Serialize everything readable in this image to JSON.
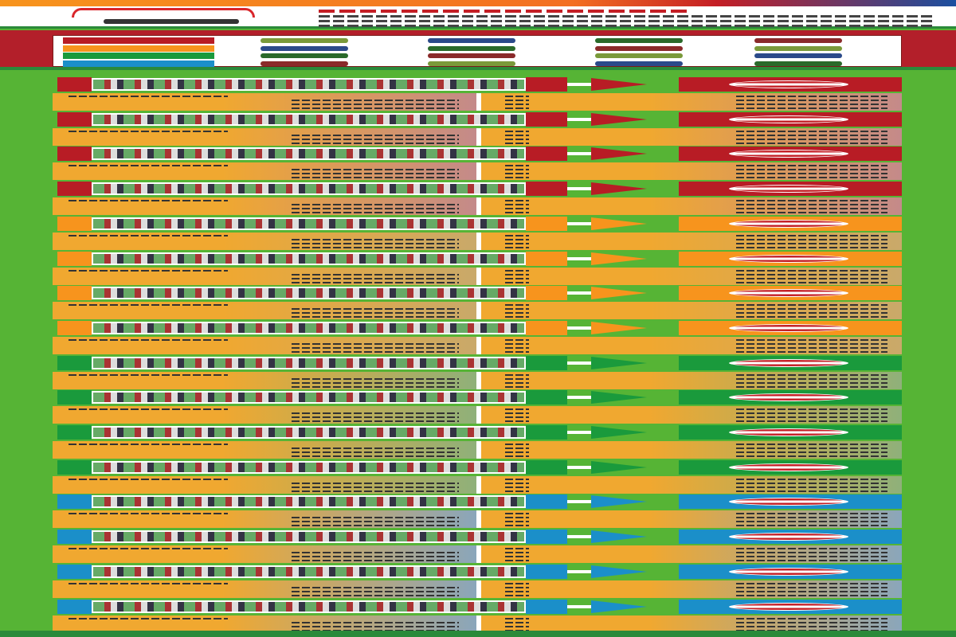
{
  "groups": [
    {
      "color": "#b81c25",
      "tint": "#c48a8a",
      "teams": 4
    },
    {
      "color": "#f7941d",
      "tint": "#c9a96a",
      "teams": 4
    },
    {
      "color": "#1a9a3c",
      "tint": "#8fb07a",
      "teams": 4
    },
    {
      "color": "#1b8fc9",
      "tint": "#8aa6bb",
      "teams": 4
    }
  ],
  "colors": {
    "background": "#56b435",
    "detail": "#f0a830",
    "header_band": "#b31f2a"
  }
}
